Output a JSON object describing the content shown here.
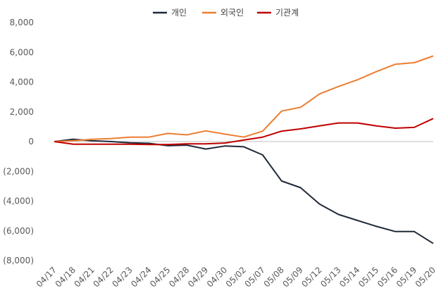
{
  "chart_data": {
    "type": "line",
    "categories": [
      "04/17",
      "04/18",
      "04/21",
      "04/22",
      "04/23",
      "04/24",
      "04/25",
      "04/28",
      "04/29",
      "04/30",
      "05/02",
      "05/07",
      "05/08",
      "05/09",
      "05/12",
      "05/13",
      "05/14",
      "05/15",
      "05/16",
      "05/19",
      "05/20"
    ],
    "y_tick_labels": [
      "8,000",
      "6,000",
      "4,000",
      "2,000",
      "0",
      "(2,000)",
      "(4,000)",
      "(6,000)",
      "(8,000)"
    ],
    "y_tick_values": [
      8000,
      6000,
      4000,
      2000,
      0,
      -2000,
      -4000,
      -6000,
      -8000
    ],
    "ylim": [
      -8000,
      8000
    ],
    "grid": false,
    "legend_position": "top-center",
    "series": [
      {
        "name": "개인",
        "color": "#1f2937",
        "values": [
          0,
          150,
          50,
          0,
          -80,
          -120,
          -280,
          -240,
          -500,
          -300,
          -350,
          -900,
          -2650,
          -3100,
          -4200,
          -4900,
          -5300,
          -5700,
          -6050,
          -6050,
          -6850
        ]
      },
      {
        "name": "외국인",
        "color": "#ed7d31",
        "values": [
          0,
          50,
          150,
          200,
          300,
          300,
          550,
          450,
          720,
          500,
          300,
          700,
          2050,
          2300,
          3200,
          3700,
          4150,
          4700,
          5200,
          5300,
          5750
        ]
      },
      {
        "name": "기관계",
        "color": "#c00000",
        "values": [
          0,
          -180,
          -180,
          -180,
          -180,
          -200,
          -200,
          -150,
          -150,
          -100,
          100,
          300,
          700,
          850,
          1050,
          1250,
          1250,
          1050,
          900,
          950,
          1550
        ]
      }
    ]
  }
}
